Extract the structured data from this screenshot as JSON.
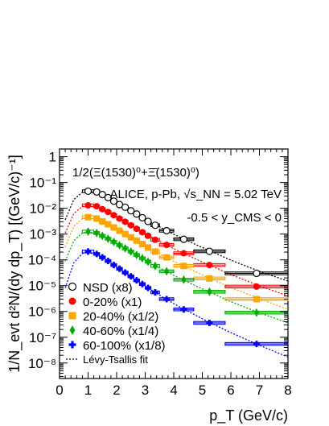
{
  "chart_data": {
    "type": "scatter",
    "title_lines": [
      "ALICE, p-Pb, √s_NN = 5.02 TeV",
      "-0.5 < y_CMS < 0"
    ],
    "particle_label": "1/2(Ξ(1530)⁰+Ξ̄(1530)⁰)",
    "xlabel": "p_T (GeV/c)",
    "ylabel": "1/N_evt d²N/(dy dp_T) [(GeV/c)⁻¹]",
    "xlim": [
      0,
      8
    ],
    "ylim_log10": [
      -8.6,
      0.3
    ],
    "y_scale": "log",
    "x_ticks": [
      "0",
      "1",
      "2",
      "3",
      "4",
      "5",
      "6",
      "7",
      "8"
    ],
    "y_ticks": [
      {
        "exp": 1,
        "label": "1"
      },
      {
        "exp": -1,
        "label": "10⁻¹"
      },
      {
        "exp": -2,
        "label": "10⁻²"
      },
      {
        "exp": -3,
        "label": "10⁻³"
      },
      {
        "exp": -4,
        "label": "10⁻⁴"
      },
      {
        "exp": -5,
        "label": "10⁻⁵"
      },
      {
        "exp": -6,
        "label": "10⁻⁶"
      },
      {
        "exp": -7,
        "label": "10⁻⁷"
      },
      {
        "exp": -8,
        "label": "10⁻⁸"
      }
    ],
    "bins": [
      [
        0.8,
        1.2
      ],
      [
        1.2,
        1.4
      ],
      [
        1.4,
        1.6
      ],
      [
        1.6,
        1.8
      ],
      [
        1.8,
        2.0
      ],
      [
        2.0,
        2.2
      ],
      [
        2.2,
        2.4
      ],
      [
        2.4,
        2.6
      ],
      [
        2.6,
        2.8
      ],
      [
        2.8,
        3.0
      ],
      [
        3.0,
        3.2
      ],
      [
        3.2,
        3.5
      ],
      [
        3.5,
        4.0
      ],
      [
        4.0,
        4.7
      ],
      [
        4.7,
        5.8
      ],
      [
        5.8,
        8.0
      ]
    ],
    "series": [
      {
        "name": "NSD (x8)",
        "color": "#000000",
        "marker": "open-circle",
        "x": [
          1.0,
          1.3,
          1.5,
          1.7,
          1.9,
          2.1,
          2.3,
          2.5,
          2.7,
          2.9,
          3.1,
          3.35,
          3.75,
          4.35,
          5.25,
          6.9
        ],
        "y": [
          0.046,
          0.043,
          0.034,
          0.026,
          0.019,
          0.014,
          0.011,
          0.008,
          0.006,
          0.0043,
          0.0031,
          0.0022,
          0.00135,
          0.00063,
          0.000215,
          3e-05
        ]
      },
      {
        "name": "0-20% (x1)",
        "color": "#ff0000",
        "marker": "filled-circle",
        "x": [
          1.0,
          1.3,
          1.5,
          1.7,
          1.9,
          2.1,
          2.3,
          2.5,
          2.7,
          2.9,
          3.1,
          3.35,
          3.75,
          4.35,
          5.25,
          6.9
        ],
        "y": [
          0.013,
          0.012,
          0.0092,
          0.0072,
          0.0054,
          0.004,
          0.003,
          0.0022,
          0.0016,
          0.00118,
          0.00086,
          0.0006,
          0.00038,
          0.00018,
          6.3e-05,
          9.2e-06
        ]
      },
      {
        "name": "20-40% (x1/2)",
        "color": "#ffa500",
        "marker": "filled-square",
        "x": [
          1.0,
          1.3,
          1.5,
          1.7,
          1.9,
          2.1,
          2.3,
          2.5,
          2.7,
          2.9,
          3.1,
          3.35,
          3.75,
          4.35,
          5.25,
          6.9
        ],
        "y": [
          0.0045,
          0.004,
          0.0031,
          0.0024,
          0.0018,
          0.00135,
          0.001,
          0.00075,
          0.00056,
          0.00041,
          0.0003,
          0.00021,
          0.000125,
          5.8e-05,
          1.9e-05,
          3e-06
        ]
      },
      {
        "name": "40-60% (x1/4)",
        "color": "#00aa00",
        "marker": "diamond",
        "x": [
          1.0,
          1.3,
          1.5,
          1.7,
          1.9,
          2.1,
          2.3,
          2.5,
          2.7,
          2.9,
          3.1,
          3.35,
          3.75,
          4.35,
          5.25,
          6.9
        ],
        "y": [
          0.00125,
          0.0011,
          0.00085,
          0.00066,
          0.0005,
          0.00037,
          0.00028,
          0.00021,
          0.000155,
          0.000115,
          8.5e-05,
          5.8e-05,
          3.6e-05,
          1.7e-05,
          5.8e-06,
          9e-07
        ]
      },
      {
        "name": "60-100% (x1/8)",
        "color": "#0000ff",
        "marker": "cross",
        "x": [
          1.0,
          1.3,
          1.5,
          1.7,
          1.9,
          2.1,
          2.3,
          2.5,
          2.7,
          2.9,
          3.1,
          3.35,
          3.75,
          4.35,
          5.25,
          6.9
        ],
        "y": [
          0.00021,
          0.00017,
          0.000125,
          9e-05,
          6.3e-05,
          4.5e-05,
          3.2e-05,
          2.3e-05,
          1.6e-05,
          1.15e-05,
          8.2e-06,
          5.5e-06,
          3e-06,
          1.2e-06,
          3.6e-07,
          5.5e-08
        ]
      }
    ],
    "fits": [
      {
        "color": "#000000",
        "x": [
          0.2,
          0.5,
          0.8,
          1.0,
          1.5,
          2.0,
          2.5,
          3.0,
          3.5,
          4.0,
          5.0,
          6.0,
          7.0,
          8.0
        ],
        "y": [
          0.0036,
          0.022,
          0.042,
          0.047,
          0.035,
          0.017,
          0.0082,
          0.0038,
          0.0019,
          0.00098,
          0.0003,
          9.8e-05,
          3.6e-05,
          1.5e-05
        ]
      },
      {
        "color": "#ff0000",
        "x": [
          0.2,
          0.5,
          0.8,
          1.0,
          1.5,
          2.0,
          2.5,
          3.0,
          3.5,
          4.0,
          5.0,
          6.0,
          7.0,
          8.0
        ],
        "y": [
          0.0011,
          0.0063,
          0.0118,
          0.0131,
          0.0094,
          0.0047,
          0.0022,
          0.00104,
          0.00052,
          0.00027,
          8.2e-05,
          2.7e-05,
          9.8e-06,
          4e-06
        ]
      },
      {
        "color": "#ffa500",
        "x": [
          0.2,
          0.5,
          0.8,
          1.0,
          1.5,
          2.0,
          2.5,
          3.0,
          3.5,
          4.0,
          5.0,
          6.0,
          7.0,
          8.0
        ],
        "y": [
          0.00032,
          0.002,
          0.004,
          0.0045,
          0.0032,
          0.00158,
          0.00074,
          0.00035,
          0.000175,
          8.8e-05,
          2.6e-05,
          8.5e-06,
          3.1e-06,
          1.2e-06
        ]
      },
      {
        "color": "#00aa00",
        "x": [
          0.2,
          0.5,
          0.8,
          1.0,
          1.5,
          2.0,
          2.5,
          3.0,
          3.5,
          4.0,
          5.0,
          6.0,
          7.0,
          8.0
        ],
        "y": [
          9e-05,
          0.00055,
          0.0011,
          0.00125,
          0.00088,
          0.00044,
          0.00021,
          9.95e-05,
          4.9e-05,
          2.5e-05,
          7.5e-06,
          2.4e-06,
          8.8e-07,
          3.6e-07
        ]
      },
      {
        "color": "#0000ff",
        "x": [
          0.2,
          0.5,
          0.8,
          1.0,
          1.5,
          2.0,
          2.5,
          3.0,
          3.5,
          4.0,
          5.0,
          6.0,
          7.0,
          8.0
        ],
        "y": [
          8.2e-06,
          7.8e-05,
          0.000178,
          0.000205,
          0.000125,
          5.2e-05,
          2.2e-05,
          9.5e-06,
          4.3e-06,
          2e-06,
          5.2e-07,
          1.5e-07,
          4.9e-08,
          1.7e-08
        ]
      }
    ],
    "legend": {
      "placement": "bottom-left",
      "fit_label": "Lévy-Tsallis fit"
    }
  }
}
